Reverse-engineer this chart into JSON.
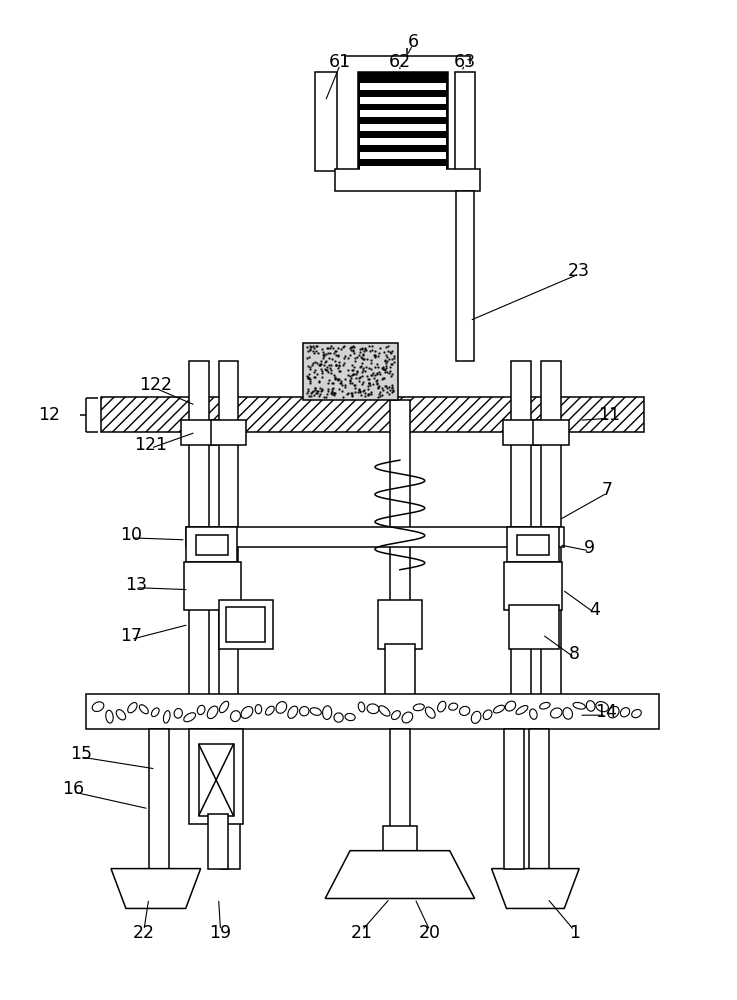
{
  "bg_color": "#ffffff",
  "fig_width": 7.37,
  "fig_height": 10.0,
  "lw": 1.1
}
